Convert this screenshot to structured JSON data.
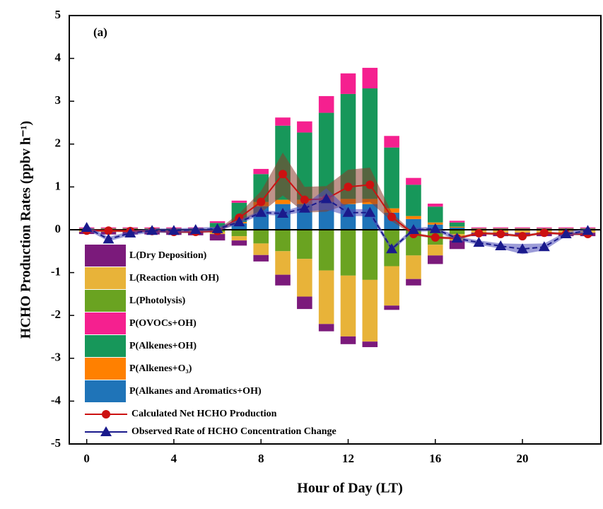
{
  "chart_data": {
    "type": "bar",
    "annotation": "(a)",
    "x_label": "Hour of Day (LT)",
    "y_label": "HCHO Production Rates (ppbv h⁻¹)",
    "x": [
      0,
      1,
      2,
      3,
      4,
      5,
      6,
      7,
      8,
      9,
      10,
      11,
      12,
      13,
      14,
      15,
      16,
      17,
      18,
      19,
      20,
      21,
      22,
      23
    ],
    "xlim": [
      -0.8,
      23.6
    ],
    "xticks": [
      0,
      4,
      8,
      12,
      16,
      20
    ],
    "ylim": [
      -5,
      5
    ],
    "yticks": [
      -5,
      -4,
      -3,
      -2,
      -1,
      0,
      1,
      2,
      3,
      4,
      5
    ],
    "series": [
      {
        "name": "P(Alkanes and Aromatics+OH)",
        "color": "#1f74b8",
        "kind": "bar",
        "values": [
          0.02,
          0.02,
          0.02,
          0.02,
          0.02,
          0.02,
          0.05,
          0.15,
          0.55,
          0.6,
          0.6,
          0.65,
          0.6,
          0.6,
          0.4,
          0.25,
          0.12,
          0.05,
          0.02,
          0.02,
          0.02,
          0.02,
          0.02,
          0.02
        ]
      },
      {
        "name": "P(Alkenes+O₃)",
        "color": "#ff8000",
        "kind": "bar",
        "values": [
          0.005,
          0.005,
          0.005,
          0.005,
          0.005,
          0.005,
          0.01,
          0.03,
          0.1,
          0.1,
          0.1,
          0.12,
          0.12,
          0.12,
          0.1,
          0.07,
          0.05,
          0.02,
          0.005,
          0.005,
          0.005,
          0.005,
          0.005,
          0.005
        ]
      },
      {
        "name": "P(Alkenes+OH)",
        "color": "#17975a",
        "kind": "bar",
        "values": [
          0.01,
          0.01,
          0.01,
          0.01,
          0.01,
          0.01,
          0.1,
          0.45,
          0.65,
          1.73,
          1.57,
          1.96,
          2.45,
          2.58,
          1.42,
          0.73,
          0.37,
          0.1,
          0.01,
          0.01,
          0.01,
          0.01,
          0.01,
          0.01
        ]
      },
      {
        "name": "P(OVOCs+OH)",
        "color": "#f5208f",
        "kind": "bar",
        "values": [
          0.02,
          0.02,
          0.02,
          0.02,
          0.02,
          0.02,
          0.04,
          0.05,
          0.12,
          0.19,
          0.26,
          0.39,
          0.48,
          0.48,
          0.27,
          0.16,
          0.07,
          0.04,
          0.02,
          0.02,
          0.02,
          0.02,
          0.02,
          0.02
        ]
      },
      {
        "name": "L(Photolysis)",
        "color": "#6aa321",
        "kind": "bar",
        "values": [
          0,
          0,
          0,
          0,
          0,
          0,
          -0.05,
          -0.15,
          -0.32,
          -0.5,
          -0.68,
          -0.95,
          -1.07,
          -1.17,
          -0.85,
          -0.6,
          -0.35,
          -0.1,
          -0.02,
          -0.02,
          -0.02,
          -0.02,
          -0.02,
          -0.02
        ]
      },
      {
        "name": "L(Reaction with OH)",
        "color": "#e8b339",
        "kind": "bar",
        "values": [
          -0.05,
          -0.05,
          -0.05,
          -0.05,
          -0.05,
          -0.05,
          -0.05,
          -0.1,
          -0.27,
          -0.55,
          -0.88,
          -1.25,
          -1.42,
          -1.44,
          -0.92,
          -0.55,
          -0.25,
          -0.15,
          -0.05,
          -0.05,
          -0.05,
          -0.05,
          -0.05,
          -0.05
        ]
      },
      {
        "name": "L(Dry Deposition)",
        "color": "#7b1a7b",
        "kind": "bar",
        "values": [
          -0.05,
          -0.06,
          -0.06,
          -0.06,
          -0.07,
          -0.08,
          -0.15,
          -0.12,
          -0.15,
          -0.25,
          -0.29,
          -0.17,
          -0.18,
          -0.13,
          -0.1,
          -0.15,
          -0.2,
          -0.2,
          -0.08,
          -0.08,
          -0.08,
          -0.08,
          -0.08,
          -0.08
        ]
      },
      {
        "name": "Calculated Net HCHO Production",
        "color": "#cc1111",
        "band_color": "#8b3a2a",
        "kind": "line",
        "marker": "circle",
        "values": [
          -0.02,
          -0.02,
          -0.03,
          -0.03,
          -0.05,
          -0.05,
          -0.03,
          0.28,
          0.65,
          1.3,
          0.7,
          0.72,
          1.0,
          1.05,
          0.3,
          -0.1,
          -0.18,
          -0.2,
          -0.08,
          -0.1,
          -0.15,
          -0.07,
          -0.1,
          -0.1
        ],
        "errors": [
          0.03,
          0.03,
          0.03,
          0.03,
          0.03,
          0.03,
          0.03,
          0.1,
          0.25,
          0.5,
          0.3,
          0.3,
          0.4,
          0.4,
          0.1,
          0.03,
          0.03,
          0.03,
          0.03,
          0.03,
          0.03,
          0.03,
          0.03,
          0.03
        ]
      },
      {
        "name": "Observed Rate of HCHO Concentration Change",
        "color": "#1a1a8c",
        "band_color": "#4a4ab8",
        "kind": "line",
        "marker": "triangle",
        "values": [
          0.05,
          -0.22,
          -0.08,
          -0.02,
          -0.02,
          0.0,
          0.02,
          0.18,
          0.4,
          0.38,
          0.5,
          0.72,
          0.4,
          0.4,
          -0.45,
          0.0,
          0.02,
          -0.2,
          -0.3,
          -0.38,
          -0.45,
          -0.4,
          -0.1,
          -0.02
        ],
        "errors": [
          0.05,
          0.05,
          0.05,
          0.05,
          0.05,
          0.05,
          0.05,
          0.05,
          0.05,
          0.05,
          0.08,
          0.25,
          0.08,
          0.08,
          0.05,
          0.05,
          0.05,
          0.05,
          0.05,
          0.06,
          0.12,
          0.08,
          0.05,
          0.05
        ]
      }
    ]
  }
}
